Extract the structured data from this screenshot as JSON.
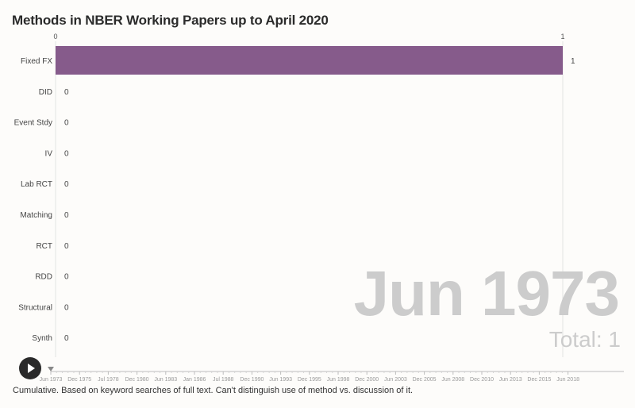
{
  "title": "Methods in NBER Working Papers up to April 2020",
  "footnote": "Cumulative. Based on keyword searches of full text. Can't distinguish use of method vs. discussion of it.",
  "overlay": {
    "date": "Jun 1973",
    "total": "Total: 1"
  },
  "controls": {
    "play_icon": "play-icon"
  },
  "colors": {
    "bar": "#865b8b",
    "overlay_text": "#cccccc"
  },
  "chart_data": {
    "type": "bar",
    "orientation": "horizontal",
    "title": "Methods in NBER Working Papers up to April 2020",
    "categories": [
      "Fixed FX",
      "DID",
      "Event Stdy",
      "IV",
      "Lab RCT",
      "Matching",
      "RCT",
      "RDD",
      "Structural",
      "Synth"
    ],
    "values": [
      1,
      0,
      0,
      0,
      0,
      0,
      0,
      0,
      0,
      0
    ],
    "value_axis": {
      "range": [
        0,
        1
      ],
      "ticks": [
        "0",
        "1"
      ],
      "position": "top"
    },
    "timeline": {
      "ticks": [
        "Jun 1973",
        "Dec 1975",
        "Jul 1978",
        "Dec 1980",
        "Jun 1983",
        "Jan 1986",
        "Jul 1988",
        "Dec 1990",
        "Jun 1993",
        "Dec 1995",
        "Jun 1998",
        "Dec 2000",
        "Jun 2003",
        "Dec 2005",
        "Jun 2008",
        "Dec 2010",
        "Jun 2013",
        "Dec 2015",
        "Jun 2018"
      ],
      "current": "Jun 1973"
    }
  }
}
